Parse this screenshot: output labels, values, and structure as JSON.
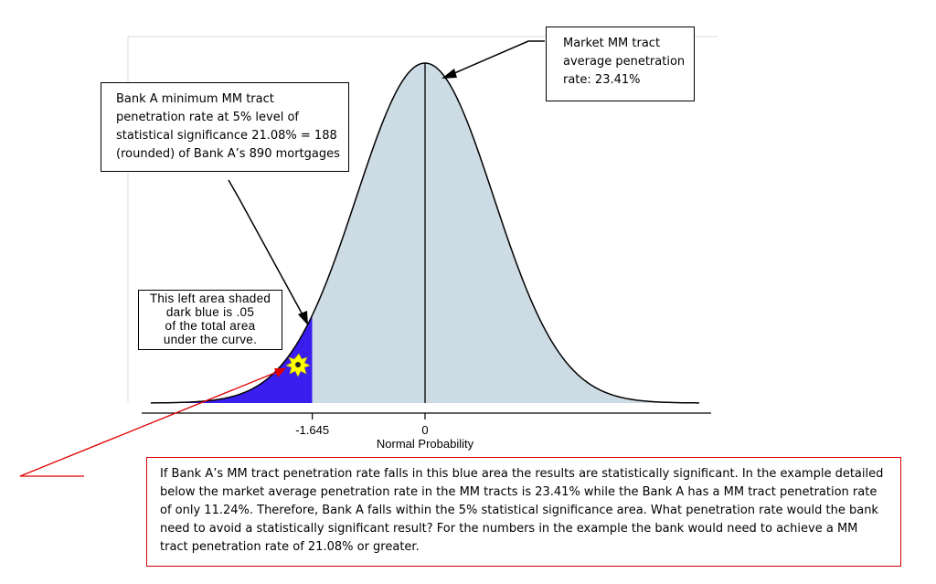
{
  "chart_data": {
    "type": "area",
    "distribution": "standard normal density",
    "xlabel": "Normal Probability",
    "xlim": [
      -4,
      4
    ],
    "x_ticks": [
      {
        "value": -1.645,
        "label": "-1.645"
      },
      {
        "value": 0,
        "label": "0"
      }
    ],
    "regions": [
      {
        "name": "left tail",
        "from": -4,
        "to": -1.645,
        "color": "#3a1ef0"
      },
      {
        "name": "body",
        "from": -1.645,
        "to": 4,
        "color": "#cddbe4"
      }
    ],
    "reference_line_x": 0
  },
  "callouts": {
    "market": {
      "lines": [
        "Market MM tract",
        "average penetration",
        "rate: 23.41%"
      ]
    },
    "bank_min": {
      "lines": [
        "Bank A minimum MM tract",
        "penetration rate at 5% level of",
        "statistical significance 21.08% = 188",
        "(rounded) of Bank A’s 890 mortgages"
      ]
    },
    "left_area": {
      "lines": [
        "This left area shaded",
        "dark blue is .05",
        "of the total area",
        "under the curve."
      ]
    },
    "explanation": "If Bank A’s MM tract penetration rate falls in this blue area the results are statistically significant. In the example detailed below the market average penetration rate in the MM tracts is 23.41% while the Bank A has a MM tract penetration rate of only 11.24%. Therefore, Bank A falls within the 5% statistical significance area. What penetration rate would the bank need to avoid a statistically significant result? For the numbers in the example the bank would need to achieve a MM tract penetration rate of 21.08% or greater."
  },
  "colors": {
    "tail": "#3a1ef0",
    "body": "#cddbe4",
    "note_border": "#d40000",
    "burst": "#ffff00"
  }
}
